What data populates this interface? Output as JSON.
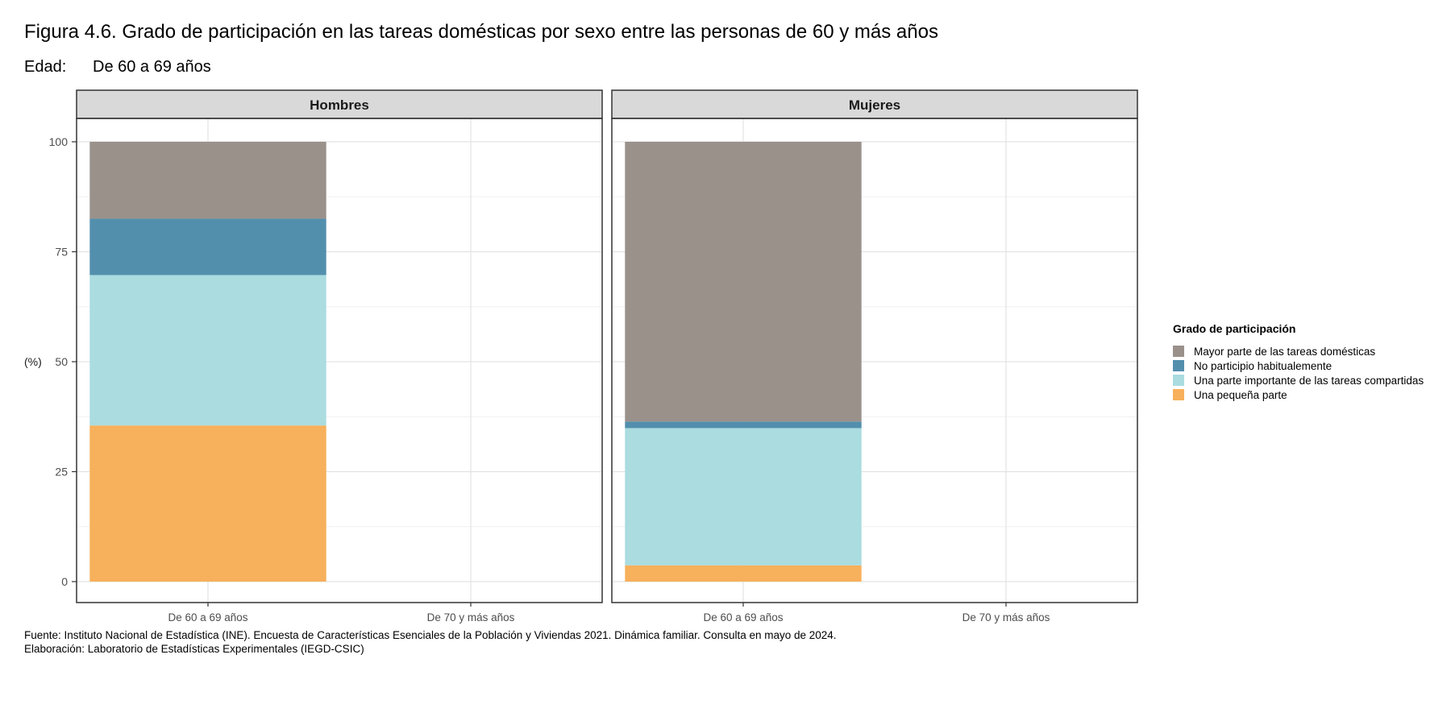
{
  "figure": {
    "title": "Figura 4.6. Grado de participación en las tareas domésticas por sexo entre las personas de 60 y más años",
    "filter_label": "Edad:",
    "filter_value": "De 60 a 69 años"
  },
  "chart_data": {
    "type": "bar",
    "stacked": true,
    "ylabel": "(%)",
    "ylim": [
      0,
      100
    ],
    "yticks": [
      0,
      25,
      50,
      75,
      100
    ],
    "grid": true,
    "legend_title": "Grado de participación",
    "legend_position": "right",
    "categories": [
      "De 60 a 69 años",
      "De 70 y más años"
    ],
    "facets": [
      {
        "label": "Hombres",
        "series": [
          {
            "name": "Una pequeña parte",
            "values": [
              35.5,
              null
            ]
          },
          {
            "name": "Una parte importante de las tareas compartidas",
            "values": [
              34.2,
              null
            ]
          },
          {
            "name": "No participio habitualemente",
            "values": [
              12.8,
              null
            ]
          },
          {
            "name": "Mayor parte de las tareas domésticas",
            "values": [
              17.5,
              null
            ]
          }
        ]
      },
      {
        "label": "Mujeres",
        "series": [
          {
            "name": "Una pequeña parte",
            "values": [
              3.7,
              null
            ]
          },
          {
            "name": "Una parte importante de las tareas compartidas",
            "values": [
              31.2,
              null
            ]
          },
          {
            "name": "No participio habitualemente",
            "values": [
              1.5,
              null
            ]
          },
          {
            "name": "Mayor parte de las tareas domésticas",
            "values": [
              63.6,
              null
            ]
          }
        ]
      }
    ],
    "legend": [
      {
        "name": "Mayor parte de las tareas domésticas",
        "color": "#9a918b"
      },
      {
        "name": "No participio habitualemente",
        "color": "#528fad"
      },
      {
        "name": "Una parte importante de las tareas compartidas",
        "color": "#aadce0"
      },
      {
        "name": "Una pequeña parte",
        "color": "#f7b05b"
      }
    ]
  },
  "caption": {
    "source": "Fuente: Instituto Nacional de Estadística (INE). Encuesta de Características Esenciales de la Población y Viviendas 2021. Dinámica familiar. Consulta en mayo de 2024.",
    "credit": "Elaboración: Laboratorio de Estadísticas Experimentales (IEGD-CSIC)"
  }
}
